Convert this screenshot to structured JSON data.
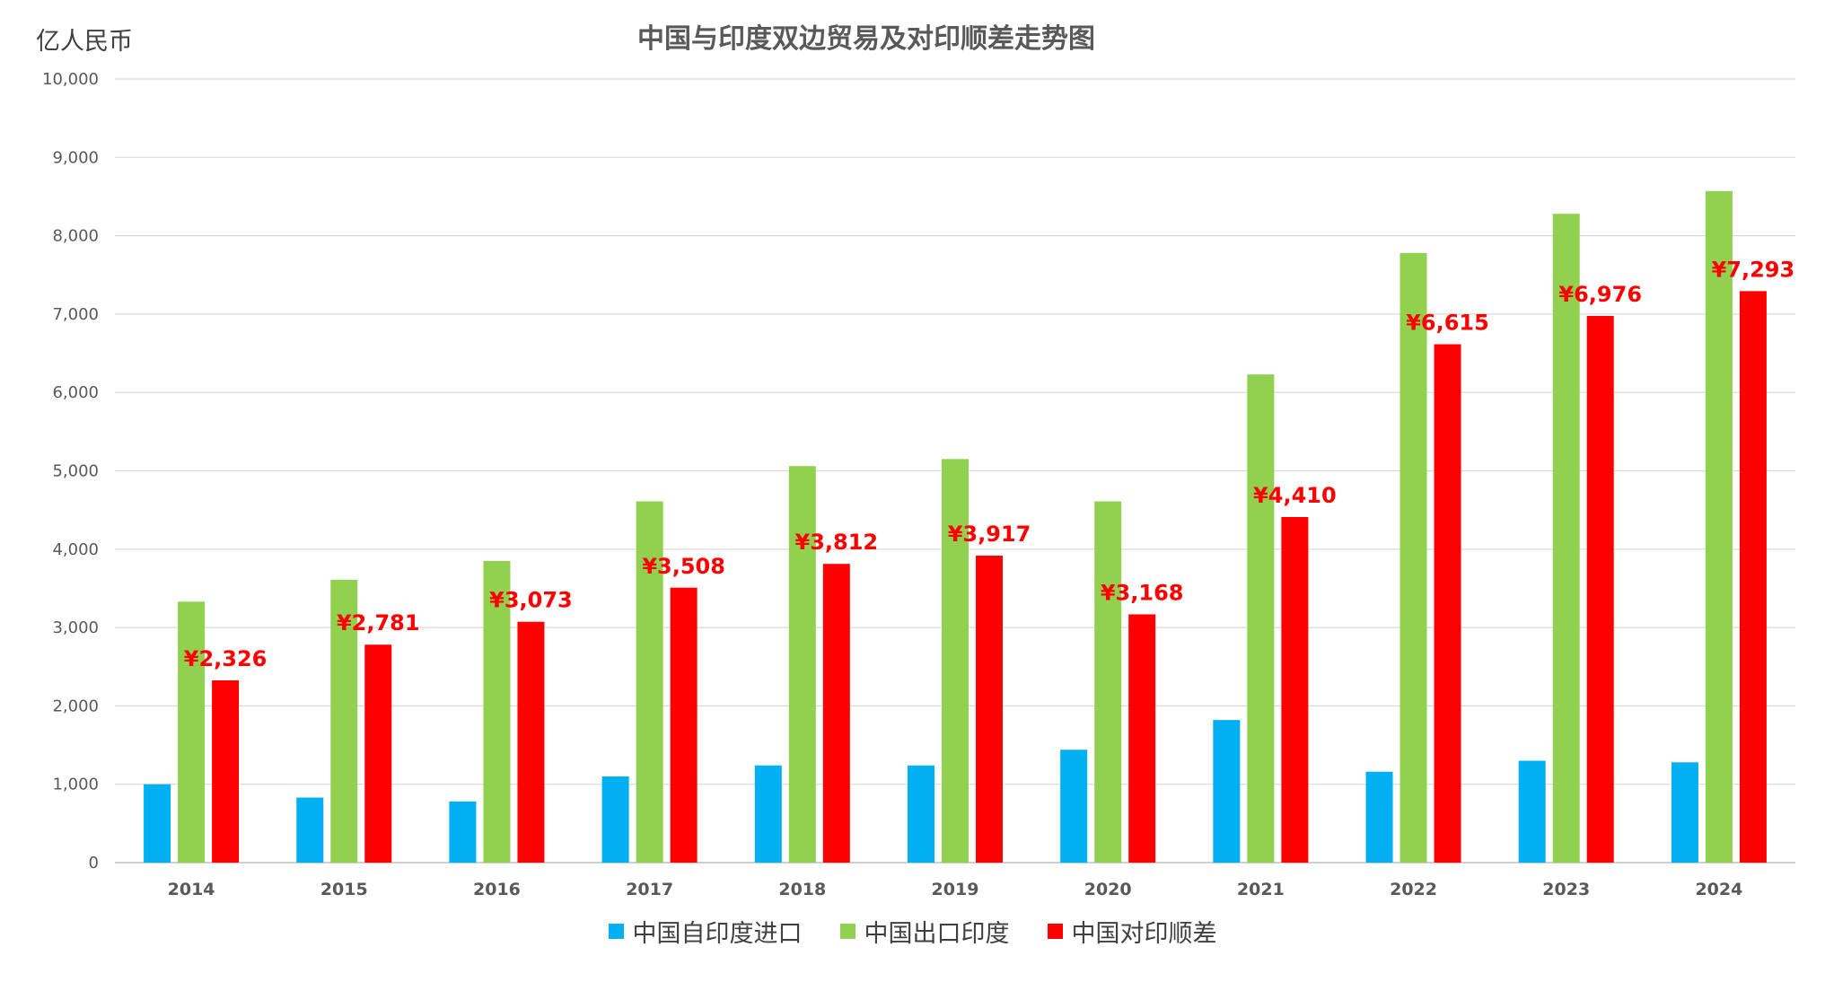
{
  "chart_data": {
    "type": "bar",
    "title": "中国与印度双边贸易及对印顺差走势图",
    "ylabel": "亿人民币",
    "xlabel": "",
    "ylim": [
      0,
      10000
    ],
    "yticks": [
      0,
      1000,
      2000,
      3000,
      4000,
      5000,
      6000,
      7000,
      8000,
      9000,
      10000
    ],
    "ytick_labels": [
      "0",
      "1,000",
      "2,000",
      "3,000",
      "4,000",
      "5,000",
      "6,000",
      "7,000",
      "8,000",
      "9,000",
      "10,000"
    ],
    "grid": true,
    "legend_position": "bottom",
    "categories": [
      "2014",
      "2015",
      "2016",
      "2017",
      "2018",
      "2019",
      "2020",
      "2021",
      "2022",
      "2023",
      "2024"
    ],
    "series": [
      {
        "name": "中国自印度进口",
        "color": "#00b0f0",
        "values": [
          1000,
          830,
          780,
          1100,
          1240,
          1240,
          1440,
          1820,
          1160,
          1300,
          1280
        ]
      },
      {
        "name": "中国出口印度",
        "color": "#92d050",
        "values": [
          3330,
          3610,
          3850,
          4610,
          5060,
          5150,
          4610,
          6230,
          7780,
          8280,
          8570
        ]
      },
      {
        "name": "中国对印顺差",
        "color": "#ff0000",
        "values": [
          2326,
          2781,
          3073,
          3508,
          3812,
          3917,
          3168,
          4410,
          6615,
          6976,
          7293
        ],
        "data_labels": [
          "¥2,326",
          "¥2,781",
          "¥3,073",
          "¥3,508",
          "¥3,812",
          "¥3,917",
          "¥3,168",
          "¥4,410",
          "¥6,615",
          "¥6,976",
          "¥7,293"
        ],
        "label_color": "#ff0000"
      }
    ]
  }
}
